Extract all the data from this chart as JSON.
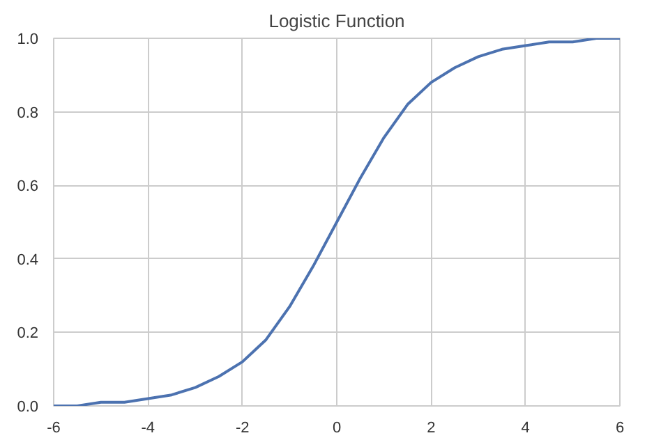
{
  "chart_data": {
    "type": "line",
    "title": "Logistic Function",
    "x": [
      -6,
      -5.5,
      -5,
      -4.5,
      -4,
      -3.5,
      -3,
      -2.5,
      -2,
      -1.5,
      -1,
      -0.5,
      0,
      0.5,
      1,
      1.5,
      2,
      2.5,
      3,
      3.5,
      4,
      4.5,
      5,
      5.5,
      6
    ],
    "series": [
      {
        "color": "#4c72b0",
        "values": [
          0.0,
          0.0,
          0.01,
          0.01,
          0.02,
          0.03,
          0.05,
          0.08,
          0.12,
          0.18,
          0.27,
          0.38,
          0.5,
          0.62,
          0.73,
          0.82,
          0.88,
          0.92,
          0.95,
          0.97,
          0.98,
          0.99,
          0.99,
          1.0,
          1.0
        ]
      }
    ],
    "xlim": [
      -6,
      6
    ],
    "ylim": [
      0,
      1
    ],
    "xticks": [
      {
        "value": -6,
        "label": "-6"
      },
      {
        "value": -4,
        "label": "-4"
      },
      {
        "value": -2,
        "label": "-2"
      },
      0,
      2,
      4,
      6
    ],
    "yticks": [
      {
        "value": 0,
        "label": "0.0"
      },
      {
        "value": 0.2,
        "label": "0.2"
      },
      {
        "value": 0.4,
        "label": "0.4"
      },
      {
        "value": 0.6,
        "label": "0.6"
      },
      {
        "value": 0.8,
        "label": "0.8"
      },
      {
        "value": 1,
        "label": "1.0"
      }
    ],
    "grid": true,
    "marker": "none",
    "line_style": "solid"
  }
}
